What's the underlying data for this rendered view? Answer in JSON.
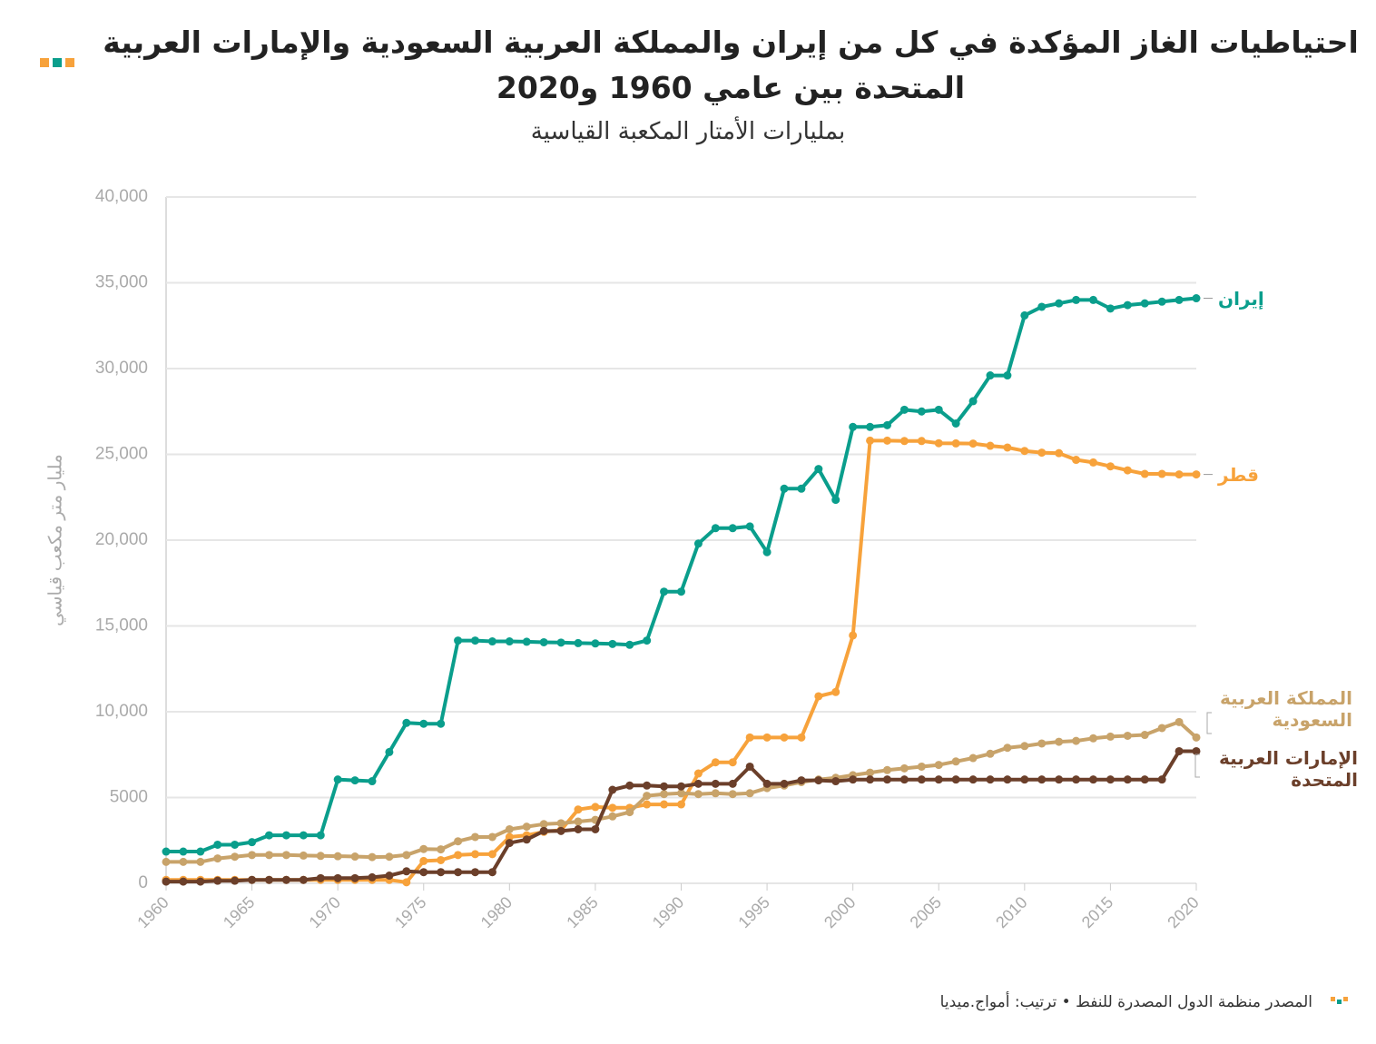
{
  "chart_data": {
    "type": "line",
    "title": "احتياطيات الغاز المؤكدة في كل من إيران والمملكة العربية السعودية والإمارات العربية المتحدة بين عامي 1960 و2020",
    "subtitle": "بمليارات الأمتار المكعبة القياسية",
    "y_label": "مليار متر مكعب قياسي",
    "source": "المصدر منظمة الدول المصدرة للنفط • ترتيب: أمواج.ميديا",
    "x": [
      1960,
      1961,
      1962,
      1963,
      1964,
      1965,
      1966,
      1967,
      1968,
      1969,
      1970,
      1971,
      1972,
      1973,
      1974,
      1975,
      1976,
      1977,
      1978,
      1979,
      1980,
      1981,
      1982,
      1983,
      1984,
      1985,
      1986,
      1987,
      1988,
      1989,
      1990,
      1991,
      1992,
      1993,
      1994,
      1995,
      1996,
      1997,
      1998,
      1999,
      2000,
      2001,
      2002,
      2003,
      2004,
      2005,
      2006,
      2007,
      2008,
      2009,
      2010,
      2011,
      2012,
      2013,
      2014,
      2015,
      2016,
      2017,
      2018,
      2019,
      2020
    ],
    "xlim": [
      1960,
      2020
    ],
    "xticks": [
      1960,
      1965,
      1970,
      1975,
      1980,
      1985,
      1990,
      1995,
      2000,
      2005,
      2010,
      2015,
      2020
    ],
    "ylim": [
      0,
      40000
    ],
    "yticks": [
      0,
      5000,
      {
        "value": 10000,
        "label": "10,000"
      },
      {
        "value": 15000,
        "label": "15,000"
      },
      {
        "value": 20000,
        "label": "20,000"
      },
      {
        "value": 25000,
        "label": "25,000"
      },
      {
        "value": 30000,
        "label": "30,000"
      },
      {
        "value": 35000,
        "label": "35,000"
      },
      {
        "value": 40000,
        "label": "40,000"
      }
    ],
    "grid": true,
    "series": [
      {
        "name": "إيران",
        "color": "#0a9e8c",
        "values": [
          1850,
          1850,
          1850,
          2250,
          2250,
          2400,
          2800,
          2800,
          2800,
          2800,
          6050,
          6000,
          5950,
          7650,
          9350,
          9300,
          9300,
          14150,
          14150,
          14100,
          14100,
          14080,
          14050,
          14030,
          14000,
          13980,
          13950,
          13900,
          14150,
          17000,
          17000,
          19800,
          20700,
          20700,
          20800,
          19300,
          23000,
          23000,
          24150,
          22350,
          26600,
          26600,
          26700,
          27600,
          27500,
          27600,
          26800,
          28100,
          29600,
          29600,
          33100,
          33600,
          33800,
          34000,
          34000,
          33500,
          33700,
          33800,
          33900,
          34000,
          34100
        ]
      },
      {
        "name": "قطر",
        "color": "#f7a23b",
        "values": [
          200,
          200,
          200,
          200,
          200,
          200,
          200,
          200,
          200,
          200,
          200,
          200,
          200,
          200,
          60,
          1300,
          1350,
          1650,
          1700,
          1700,
          2700,
          2800,
          3000,
          3100,
          4300,
          4450,
          4400,
          4400,
          4600,
          4600,
          4600,
          6400,
          7050,
          7050,
          8500,
          8500,
          8500,
          8500,
          10900,
          11150,
          14450,
          25800,
          25800,
          25780,
          25780,
          25650,
          25640,
          25630,
          25500,
          25400,
          25200,
          25100,
          25070,
          24680,
          24530,
          24300,
          24070,
          23860,
          23860,
          23830,
          23830
        ]
      },
      {
        "name": "المملكة العربية السعودية",
        "color": "#c8a36a",
        "values": [
          1250,
          1250,
          1250,
          1450,
          1550,
          1650,
          1650,
          1650,
          1620,
          1600,
          1580,
          1560,
          1530,
          1550,
          1650,
          2000,
          1980,
          2450,
          2700,
          2700,
          3150,
          3300,
          3450,
          3500,
          3600,
          3700,
          3900,
          4150,
          5100,
          5200,
          5250,
          5200,
          5250,
          5200,
          5250,
          5550,
          5700,
          5900,
          6050,
          6150,
          6300,
          6450,
          6600,
          6700,
          6800,
          6900,
          7100,
          7300,
          7550,
          7900,
          8000,
          8150,
          8250,
          8300,
          8450,
          8550,
          8600,
          8650,
          9050,
          9400,
          8500
        ]
      },
      {
        "name": "الإمارات العربية المتحدة",
        "color": "#6b3f2a",
        "values": [
          100,
          100,
          100,
          150,
          150,
          200,
          200,
          200,
          200,
          300,
          300,
          300,
          350,
          450,
          700,
          650,
          650,
          650,
          650,
          650,
          2350,
          2550,
          3050,
          3050,
          3150,
          3150,
          5450,
          5700,
          5700,
          5650,
          5650,
          5800,
          5800,
          5800,
          6800,
          5800,
          5800,
          6000,
          6000,
          5950,
          6050,
          6050,
          6050,
          6050,
          6050,
          6050,
          6050,
          6050,
          6050,
          6050,
          6050,
          6050,
          6050,
          6050,
          6050,
          6050,
          6050,
          6050,
          6050,
          7700,
          7700
        ]
      }
    ]
  }
}
